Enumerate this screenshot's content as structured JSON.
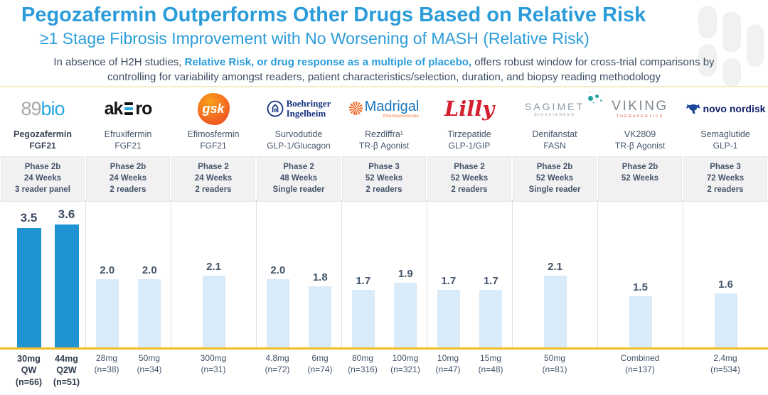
{
  "header": {
    "title": "Pegozafermin Outperforms Other Drugs Based on Relative Risk",
    "subtitle": "≥1 Stage Fibrosis Improvement with No Worsening of MASH (Relative Risk)",
    "note_prefix": "In absence of H2H studies, ",
    "note_highlight": "Relative Risk, or drug response as a multiple of placebo,",
    "note_suffix": " offers robust window for cross-trial comparisons by controlling for variability amongst readers, patient characteristics/selection, duration, and biopsy reading methodology"
  },
  "colors": {
    "accent_blue": "#2b9cd9",
    "bar_highlight": "#2093d5",
    "bar_default": "#d9eaf8",
    "gold_line": "#f3bd27",
    "text_slate": "#44546A"
  },
  "columns": [
    {
      "company": "89bio",
      "logo": {
        "gray": "89",
        "blue": "bio"
      },
      "drug": "Pegozafermin",
      "mechanism": "FGF21",
      "phase": [
        "Phase 2b",
        "24 Weeks",
        "3 reader panel"
      ],
      "bars": [
        {
          "value": "3.5",
          "dose": [
            "30mg",
            "QW",
            "(n=66)"
          ]
        },
        {
          "value": "3.6",
          "dose": [
            "44mg",
            "Q2W",
            "(n=51)"
          ]
        }
      ]
    },
    {
      "company": "Akero",
      "logo": {
        "left": "ak",
        "right": "ro"
      },
      "drug": "Efruxifermin",
      "mechanism": "FGF21",
      "phase": [
        "Phase 2b",
        "24 Weeks",
        "2 readers"
      ],
      "bars": [
        {
          "value": "2.0",
          "dose": [
            "28mg",
            "(n=38)"
          ]
        },
        {
          "value": "2.0",
          "dose": [
            "50mg",
            "(n=34)"
          ]
        }
      ]
    },
    {
      "company": "GSK",
      "logo": {
        "text": "gsk"
      },
      "drug": "Efimosfermin",
      "mechanism": "FGF21",
      "phase": [
        "Phase 2",
        "24 Weeks",
        "2 readers"
      ],
      "bars": [
        {
          "value": "2.1",
          "dose": [
            "300mg",
            "(n=31)"
          ]
        }
      ]
    },
    {
      "company": "Boehringer Ingelheim",
      "logo": {
        "line1": "Boehringer",
        "line2": "Ingelheim"
      },
      "drug": "Survodutide",
      "mechanism": "GLP-1/Glucagon",
      "phase": [
        "Phase 2",
        "48 Weeks",
        "Single reader"
      ],
      "bars": [
        {
          "value": "2.0",
          "dose": [
            "4.8mg",
            "(n=72)"
          ]
        },
        {
          "value": "1.8",
          "dose": [
            "6mg",
            "(n=74)"
          ]
        }
      ]
    },
    {
      "company": "Madrigal",
      "logo": {
        "name": "Madrigal",
        "sub": "Pharmaceuticals"
      },
      "drug": "Rezdiffra¹",
      "mechanism": "TR-β Agonist",
      "phase": [
        "Phase 3",
        "52 Weeks",
        "2 readers"
      ],
      "bars": [
        {
          "value": "1.7",
          "dose": [
            "80mg",
            "(n=316)"
          ]
        },
        {
          "value": "1.9",
          "dose": [
            "100mg",
            "(n=321)"
          ]
        }
      ]
    },
    {
      "company": "Lilly",
      "logo": {
        "text": "Lilly"
      },
      "drug": "Tirzepatide",
      "mechanism": "GLP-1/GIP",
      "phase": [
        "Phase 2",
        "52 Weeks",
        "2 readers"
      ],
      "bars": [
        {
          "value": "1.7",
          "dose": [
            "10mg",
            "(n=47)"
          ]
        },
        {
          "value": "1.7",
          "dose": [
            "15mg",
            "(n=48)"
          ]
        }
      ]
    },
    {
      "company": "Sagimet Biosciences",
      "logo": {
        "name": "SAGIMET",
        "sub": "BIOSCIENCES"
      },
      "drug": "Denifanstat",
      "mechanism": "FASN",
      "phase": [
        "Phase 2b",
        "52 Weeks",
        "Single reader"
      ],
      "bars": [
        {
          "value": "2.1",
          "dose": [
            "50mg",
            "(n=81)"
          ]
        }
      ]
    },
    {
      "company": "Viking Therapeutics",
      "logo": {
        "name": "VIKING",
        "sub": "THERAPEUTICS"
      },
      "drug": "VK2809",
      "mechanism": "TR-β Agonist",
      "phase": [
        "Phase 2b",
        "52 Weeks"
      ],
      "bars": [
        {
          "value": "1.5",
          "dose": [
            "Combined",
            "(n=137)"
          ]
        }
      ]
    },
    {
      "company": "Novo Nordisk",
      "logo": {
        "text": "novo nordisk"
      },
      "drug": "Semaglutide",
      "mechanism": "GLP-1",
      "phase": [
        "Phase 3",
        "72 Weeks",
        "2 readers"
      ],
      "bars": [
        {
          "value": "1.6",
          "dose": [
            "2.4mg",
            "(n=534)"
          ]
        }
      ]
    }
  ],
  "chart_data": {
    "type": "bar",
    "title": "≥1 Stage Fibrosis Improvement with No Worsening of MASH (Relative Risk)",
    "ylim": [
      0,
      4
    ],
    "legend_position": "none",
    "grid": false,
    "bar_colors": {
      "highlight": "#2093d5",
      "default": "#d9eaf8"
    },
    "groups": [
      {
        "company": "89bio",
        "drug": "Pegozafermin",
        "labels": [
          "30mg QW (n=66)",
          "44mg Q2W (n=51)"
        ],
        "values": [
          3.5,
          3.6
        ],
        "highlight": true
      },
      {
        "company": "Akero",
        "drug": "Efruxifermin",
        "labels": [
          "28mg (n=38)",
          "50mg (n=34)"
        ],
        "values": [
          2.0,
          2.0
        ],
        "highlight": false
      },
      {
        "company": "GSK",
        "drug": "Efimosfermin",
        "labels": [
          "300mg (n=31)"
        ],
        "values": [
          2.1
        ],
        "highlight": false
      },
      {
        "company": "Boehringer Ingelheim",
        "drug": "Survodutide",
        "labels": [
          "4.8mg (n=72)",
          "6mg (n=74)"
        ],
        "values": [
          2.0,
          1.8
        ],
        "highlight": false
      },
      {
        "company": "Madrigal",
        "drug": "Rezdiffra",
        "labels": [
          "80mg (n=316)",
          "100mg (n=321)"
        ],
        "values": [
          1.7,
          1.9
        ],
        "highlight": false
      },
      {
        "company": "Lilly",
        "drug": "Tirzepatide",
        "labels": [
          "10mg (n=47)",
          "15mg (n=48)"
        ],
        "values": [
          1.7,
          1.7
        ],
        "highlight": false
      },
      {
        "company": "Sagimet",
        "drug": "Denifanstat",
        "labels": [
          "50mg (n=81)"
        ],
        "values": [
          2.1
        ],
        "highlight": false
      },
      {
        "company": "Viking",
        "drug": "VK2809",
        "labels": [
          "Combined (n=137)"
        ],
        "values": [
          1.5
        ],
        "highlight": false
      },
      {
        "company": "Novo Nordisk",
        "drug": "Semaglutide",
        "labels": [
          "2.4mg (n=534)"
        ],
        "values": [
          1.6
        ],
        "highlight": false
      }
    ]
  }
}
